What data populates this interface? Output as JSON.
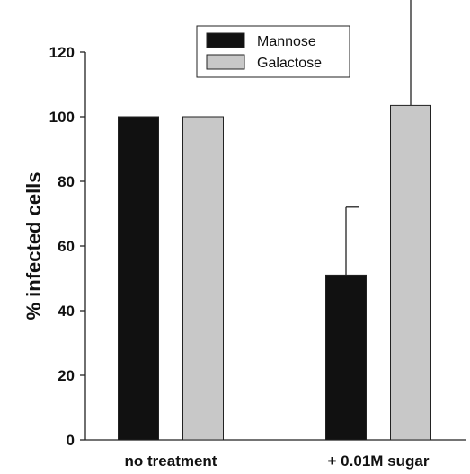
{
  "chart_data": {
    "type": "bar",
    "categories": [
      "no treatment",
      "+ 0.01M sugar"
    ],
    "series": [
      {
        "name": "Mannose",
        "values": [
          100,
          51
        ],
        "error": [
          0,
          21
        ],
        "color": "#111111"
      },
      {
        "name": "Galactose",
        "values": [
          100,
          103.5
        ],
        "error": [
          0,
          33
        ],
        "color": "#c8c8c8"
      }
    ],
    "ylabel": "% infected cells",
    "ylim": [
      0,
      120
    ],
    "yticks": [
      0,
      20,
      40,
      60,
      80,
      100,
      120
    ],
    "legend_position": "top-center",
    "grid": false
  }
}
